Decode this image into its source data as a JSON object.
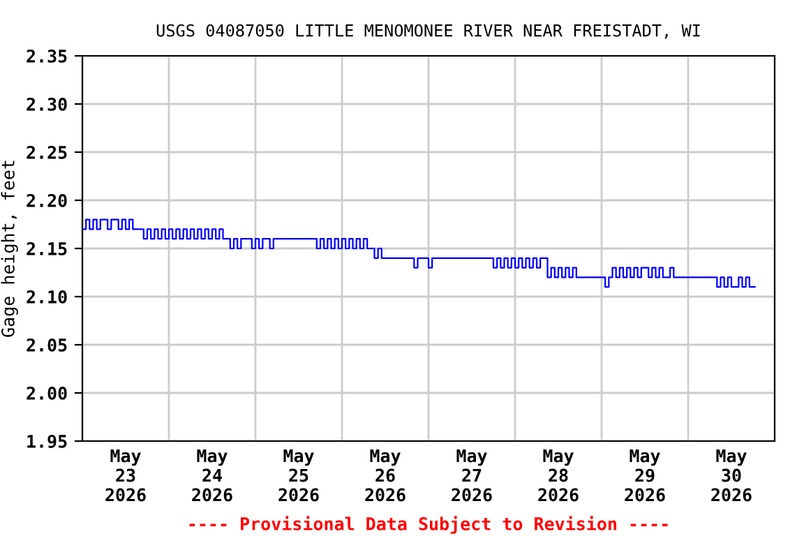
{
  "chart_data": {
    "type": "step",
    "title": "USGS 04087050 LITTLE MENOMONEE RIVER NEAR FREISTADT, WI",
    "ylabel": "Gage height, feet",
    "annotations": [
      "---- Provisional Data Subject to Revision ----"
    ],
    "xlim": [
      "2026-05-23T00:00",
      "2026-05-31T00:00"
    ],
    "xticks": [
      {
        "value": "2026-05-23T00:00",
        "label": null
      },
      {
        "value": "2026-05-23T12:00",
        "label": "May\n23\n2026"
      },
      {
        "value": "2026-05-24T00:00",
        "label": null
      },
      {
        "value": "2026-05-24T12:00",
        "label": "May\n24\n2026"
      },
      {
        "value": "2026-05-25T00:00",
        "label": null
      },
      {
        "value": "2026-05-25T12:00",
        "label": "May\n25\n2026"
      },
      {
        "value": "2026-05-26T00:00",
        "label": null
      },
      {
        "value": "2026-05-26T12:00",
        "label": "May\n26\n2026"
      },
      {
        "value": "2026-05-27T00:00",
        "label": null
      },
      {
        "value": "2026-05-27T12:00",
        "label": "May\n27\n2026"
      },
      {
        "value": "2026-05-28T00:00",
        "label": null
      },
      {
        "value": "2026-05-28T12:00",
        "label": "May\n28\n2026"
      },
      {
        "value": "2026-05-29T00:00",
        "label": null
      },
      {
        "value": "2026-05-29T12:00",
        "label": "May\n29\n2026"
      },
      {
        "value": "2026-05-30T00:00",
        "label": null
      },
      {
        "value": "2026-05-30T12:00",
        "label": "May\n30\n2026"
      },
      {
        "value": "2026-05-31T00:00",
        "label": null
      }
    ],
    "ylim": [
      1.95,
      2.35
    ],
    "yticks": [
      {
        "value": 1.95,
        "label": "1.95"
      },
      {
        "value": 2.0,
        "label": "2.00"
      },
      {
        "value": 2.05,
        "label": "2.05"
      },
      {
        "value": 2.1,
        "label": "2.10"
      },
      {
        "value": 2.15,
        "label": "2.15"
      },
      {
        "value": 2.2,
        "label": "2.20"
      },
      {
        "value": 2.25,
        "label": "2.25"
      },
      {
        "value": 2.3,
        "label": "2.30"
      },
      {
        "value": 2.35,
        "label": "2.35"
      }
    ],
    "grid": true,
    "legend": false,
    "series": [
      {
        "color": "#0000ff",
        "x": [
          "2026-05-23T00:00",
          "2026-05-23T01:00",
          "2026-05-23T02:00",
          "2026-05-23T03:00",
          "2026-05-23T04:00",
          "2026-05-23T05:00",
          "2026-05-23T07:00",
          "2026-05-23T08:00",
          "2026-05-23T10:00",
          "2026-05-23T11:00",
          "2026-05-23T12:00",
          "2026-05-23T13:00",
          "2026-05-23T14:00",
          "2026-05-23T17:00",
          "2026-05-23T18:00",
          "2026-05-23T19:00",
          "2026-05-23T20:00",
          "2026-05-23T21:00",
          "2026-05-23T22:00",
          "2026-05-23T23:00",
          "2026-05-24T00:00",
          "2026-05-24T01:00",
          "2026-05-24T02:00",
          "2026-05-24T03:00",
          "2026-05-24T04:00",
          "2026-05-24T05:00",
          "2026-05-24T06:00",
          "2026-05-24T07:00",
          "2026-05-24T08:00",
          "2026-05-24T09:00",
          "2026-05-24T10:00",
          "2026-05-24T11:00",
          "2026-05-24T12:00",
          "2026-05-24T13:00",
          "2026-05-24T14:00",
          "2026-05-24T15:00",
          "2026-05-24T17:00",
          "2026-05-24T18:00",
          "2026-05-24T19:00",
          "2026-05-24T20:00",
          "2026-05-24T23:00",
          "2026-05-25T00:00",
          "2026-05-25T01:00",
          "2026-05-25T02:00",
          "2026-05-25T04:00",
          "2026-05-25T05:00",
          "2026-05-25T17:00",
          "2026-05-25T18:00",
          "2026-05-25T19:00",
          "2026-05-25T20:00",
          "2026-05-25T21:00",
          "2026-05-25T22:00",
          "2026-05-25T23:00",
          "2026-05-26T00:00",
          "2026-05-26T01:00",
          "2026-05-26T02:00",
          "2026-05-26T03:00",
          "2026-05-26T04:00",
          "2026-05-26T05:00",
          "2026-05-26T06:00",
          "2026-05-26T07:00",
          "2026-05-26T09:00",
          "2026-05-26T10:00",
          "2026-05-26T11:00",
          "2026-05-26T20:00",
          "2026-05-26T21:00",
          "2026-05-27T00:00",
          "2026-05-27T01:00",
          "2026-05-27T18:00",
          "2026-05-27T19:00",
          "2026-05-27T20:00",
          "2026-05-27T21:00",
          "2026-05-27T22:00",
          "2026-05-27T23:00",
          "2026-05-28T00:00",
          "2026-05-28T01:00",
          "2026-05-28T02:00",
          "2026-05-28T03:00",
          "2026-05-28T04:00",
          "2026-05-28T05:00",
          "2026-05-28T06:00",
          "2026-05-28T07:00",
          "2026-05-28T09:00",
          "2026-05-28T10:00",
          "2026-05-28T11:00",
          "2026-05-28T12:00",
          "2026-05-28T13:00",
          "2026-05-28T14:00",
          "2026-05-28T15:00",
          "2026-05-28T16:00",
          "2026-05-28T17:00",
          "2026-05-29T01:00",
          "2026-05-29T02:00",
          "2026-05-29T03:00",
          "2026-05-29T04:00",
          "2026-05-29T05:00",
          "2026-05-29T06:00",
          "2026-05-29T07:00",
          "2026-05-29T08:00",
          "2026-05-29T09:00",
          "2026-05-29T10:00",
          "2026-05-29T11:00",
          "2026-05-29T13:00",
          "2026-05-29T14:00",
          "2026-05-29T15:00",
          "2026-05-29T16:00",
          "2026-05-29T17:00",
          "2026-05-29T19:00",
          "2026-05-29T20:00",
          "2026-05-30T08:00",
          "2026-05-30T09:00",
          "2026-05-30T10:00",
          "2026-05-30T11:00",
          "2026-05-30T12:00",
          "2026-05-30T14:00",
          "2026-05-30T15:00",
          "2026-05-30T16:00",
          "2026-05-30T17:00",
          "2026-05-30T18:30"
        ],
        "values": [
          2.17,
          2.18,
          2.17,
          2.18,
          2.17,
          2.18,
          2.17,
          2.18,
          2.17,
          2.18,
          2.17,
          2.18,
          2.17,
          2.16,
          2.17,
          2.16,
          2.17,
          2.16,
          2.17,
          2.16,
          2.17,
          2.16,
          2.17,
          2.16,
          2.17,
          2.16,
          2.17,
          2.16,
          2.17,
          2.16,
          2.17,
          2.16,
          2.17,
          2.16,
          2.17,
          2.16,
          2.15,
          2.16,
          2.15,
          2.16,
          2.15,
          2.16,
          2.15,
          2.16,
          2.15,
          2.16,
          2.15,
          2.16,
          2.15,
          2.16,
          2.15,
          2.16,
          2.15,
          2.16,
          2.15,
          2.16,
          2.15,
          2.16,
          2.15,
          2.16,
          2.15,
          2.14,
          2.15,
          2.14,
          2.13,
          2.14,
          2.13,
          2.14,
          2.13,
          2.14,
          2.13,
          2.14,
          2.13,
          2.14,
          2.13,
          2.14,
          2.13,
          2.14,
          2.13,
          2.14,
          2.13,
          2.14,
          2.12,
          2.13,
          2.12,
          2.13,
          2.12,
          2.13,
          2.12,
          2.13,
          2.12,
          2.11,
          2.12,
          2.13,
          2.12,
          2.13,
          2.12,
          2.13,
          2.12,
          2.13,
          2.12,
          2.13,
          2.12,
          2.13,
          2.12,
          2.13,
          2.12,
          2.13,
          2.12,
          2.11,
          2.12,
          2.11,
          2.12,
          2.11,
          2.12,
          2.11,
          2.12,
          2.11,
          2.11
        ]
      }
    ]
  }
}
